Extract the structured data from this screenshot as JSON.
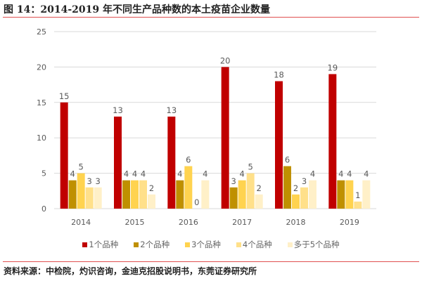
{
  "title": "图 14：2014-2019 年不同生产品种数的本土疫苗企业数量",
  "source": "资料来源：中检院，灼识咨询，金迪克招股说明书，东莞证券研究所",
  "chart_data": {
    "type": "bar",
    "categories": [
      "2014",
      "2015",
      "2016",
      "2017",
      "2018",
      "2019"
    ],
    "series": [
      {
        "name": "1个品种",
        "color": "#C00000",
        "values": [
          15,
          13,
          13,
          20,
          18,
          19
        ]
      },
      {
        "name": "2个品种",
        "color": "#BF9000",
        "values": [
          4,
          4,
          4,
          3,
          6,
          4
        ]
      },
      {
        "name": "3个品种",
        "color": "#FFD34F",
        "values": [
          5,
          4,
          6,
          4,
          2,
          4
        ]
      },
      {
        "name": "4个品种",
        "color": "#FFE08A",
        "values": [
          3,
          4,
          0,
          5,
          3,
          1
        ]
      },
      {
        "name": "多于5个品种",
        "color": "#FFF0C8",
        "values": [
          3,
          2,
          4,
          2,
          4,
          4
        ]
      }
    ],
    "yticks": [
      0,
      5,
      10,
      15,
      20,
      25
    ],
    "ylim": [
      0,
      25
    ],
    "grid": true,
    "legend": "bottom"
  }
}
